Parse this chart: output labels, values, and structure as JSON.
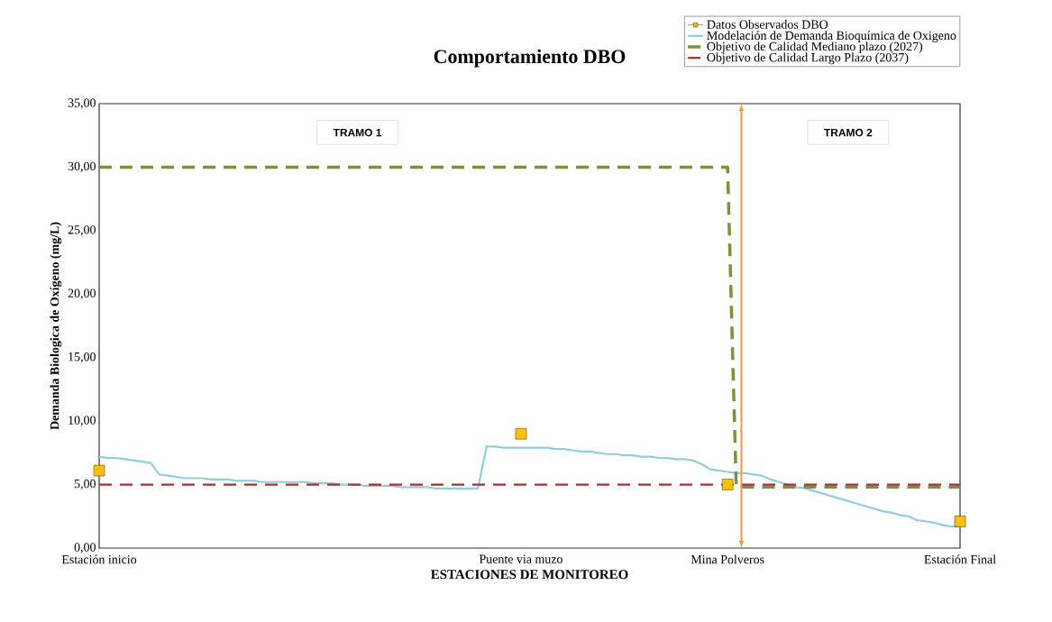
{
  "chart_data": {
    "type": "line",
    "title": "Comportamiento DBO",
    "xlabel": "ESTACIONES DE MONITOREO",
    "ylabel": "Demanda Biologica de Oxígeno  (mg/L)",
    "categories": [
      "Estación inicio",
      null,
      null,
      null,
      null,
      null,
      null,
      null,
      null,
      null,
      null,
      null,
      null,
      null,
      null,
      null,
      null,
      null,
      null,
      null,
      null,
      null,
      null,
      null,
      null,
      null,
      null,
      null,
      null,
      null,
      null,
      null,
      null,
      null,
      null,
      null,
      null,
      null,
      null,
      null,
      null,
      null,
      null,
      null,
      null,
      null,
      null,
      null,
      null,
      "Puente via muzo",
      null,
      null,
      null,
      null,
      null,
      null,
      null,
      null,
      null,
      null,
      null,
      null,
      null,
      null,
      null,
      null,
      null,
      null,
      null,
      null,
      null,
      null,
      null,
      "Mina Polveros",
      null,
      null,
      null,
      null,
      null,
      null,
      null,
      null,
      null,
      null,
      null,
      null,
      null,
      null,
      null,
      null,
      null,
      null,
      null,
      null,
      null,
      null,
      null,
      null,
      null,
      null,
      "Estación Final"
    ],
    "ylim": [
      0,
      35
    ],
    "yticks": [
      {
        "value": 0,
        "label": "0,00"
      },
      {
        "value": 5,
        "label": "5,00"
      },
      {
        "value": 10,
        "label": "10,00"
      },
      {
        "value": 15,
        "label": "15,00"
      },
      {
        "value": 20,
        "label": "20,00"
      },
      {
        "value": 25,
        "label": "25,00"
      },
      {
        "value": 30,
        "label": "30,00"
      },
      {
        "value": 35,
        "label": "35,00"
      }
    ],
    "legend": "top right",
    "series": [
      {
        "name": "Datos Observados DBO",
        "type": "scatter",
        "marker": "square",
        "color": "#ffc000",
        "values": [
          6.1,
          null,
          null,
          null,
          null,
          null,
          null,
          null,
          null,
          null,
          null,
          null,
          null,
          null,
          null,
          null,
          null,
          null,
          null,
          null,
          null,
          null,
          null,
          null,
          null,
          null,
          null,
          null,
          null,
          null,
          null,
          null,
          null,
          null,
          null,
          null,
          null,
          null,
          null,
          null,
          null,
          null,
          null,
          null,
          null,
          null,
          null,
          null,
          null,
          9.0,
          null,
          null,
          null,
          null,
          null,
          null,
          null,
          null,
          null,
          null,
          null,
          null,
          null,
          null,
          null,
          null,
          null,
          null,
          null,
          null,
          null,
          null,
          null,
          5.0,
          null,
          null,
          null,
          null,
          null,
          null,
          null,
          null,
          null,
          null,
          null,
          null,
          null,
          null,
          null,
          null,
          null,
          null,
          null,
          null,
          null,
          null,
          null,
          null,
          null,
          null,
          2.1
        ]
      },
      {
        "name": "Modelación de Demanda Bioquímica de Oxigeno",
        "color": "#92cddc",
        "values": [
          7.2,
          7.1,
          7.1,
          7.0,
          6.9,
          6.8,
          6.7,
          5.8,
          5.7,
          5.6,
          5.5,
          5.5,
          5.5,
          5.4,
          5.4,
          5.4,
          5.3,
          5.3,
          5.3,
          5.2,
          5.2,
          5.2,
          5.2,
          5.2,
          5.2,
          5.1,
          5.1,
          5.1,
          5.0,
          5.0,
          5.0,
          4.9,
          4.9,
          4.9,
          4.9,
          4.8,
          4.8,
          4.8,
          4.8,
          4.7,
          4.7,
          4.7,
          4.7,
          4.7,
          4.7,
          8.0,
          8.0,
          7.9,
          7.9,
          7.9,
          7.9,
          7.9,
          7.9,
          7.8,
          7.8,
          7.7,
          7.6,
          7.6,
          7.5,
          7.4,
          7.4,
          7.3,
          7.3,
          7.2,
          7.2,
          7.1,
          7.1,
          7.0,
          7.0,
          6.9,
          6.6,
          6.2,
          6.1,
          6.0,
          5.9,
          5.9,
          5.8,
          5.7,
          5.4,
          5.2,
          5.0,
          4.8,
          4.7,
          4.5,
          4.3,
          4.1,
          3.9,
          3.7,
          3.5,
          3.3,
          3.1,
          2.9,
          2.8,
          2.6,
          2.5,
          2.2,
          2.1,
          2.0,
          1.8,
          1.7,
          1.7
        ]
      },
      {
        "name": "Objetivo de Calidad Mediano plazo (2027)",
        "type": "line",
        "line_style": "dashed",
        "color": "#77933c",
        "values": [
          30,
          30,
          30,
          30,
          30,
          30,
          30,
          30,
          30,
          30,
          30,
          30,
          30,
          30,
          30,
          30,
          30,
          30,
          30,
          30,
          30,
          30,
          30,
          30,
          30,
          30,
          30,
          30,
          30,
          30,
          30,
          30,
          30,
          30,
          30,
          30,
          30,
          30,
          30,
          30,
          30,
          30,
          30,
          30,
          30,
          30,
          30,
          30,
          30,
          30,
          30,
          30,
          30,
          30,
          30,
          30,
          30,
          30,
          30,
          30,
          30,
          30,
          30,
          30,
          30,
          30,
          30,
          30,
          30,
          30,
          30,
          30,
          30,
          30,
          4.8,
          4.8,
          4.8,
          4.8,
          4.8,
          4.8,
          4.8,
          4.8,
          4.8,
          4.8,
          4.8,
          4.8,
          4.8,
          4.8,
          4.8,
          4.8,
          4.8,
          4.8,
          4.8,
          4.8,
          4.8,
          4.8,
          4.8,
          4.8,
          4.8,
          4.8,
          4.8
        ]
      },
      {
        "name": "Objetivo de Calidad Largo Plazo (2037)",
        "type": "line",
        "line_style": "dashed",
        "color": "#a5302d",
        "values": [
          5,
          5,
          5,
          5,
          5,
          5,
          5,
          5,
          5,
          5,
          5,
          5,
          5,
          5,
          5,
          5,
          5,
          5,
          5,
          5,
          5,
          5,
          5,
          5,
          5,
          5,
          5,
          5,
          5,
          5,
          5,
          5,
          5,
          5,
          5,
          5,
          5,
          5,
          5,
          5,
          5,
          5,
          5,
          5,
          5,
          5,
          5,
          5,
          5,
          5,
          5,
          5,
          5,
          5,
          5,
          5,
          5,
          5,
          5,
          5,
          5,
          5,
          5,
          5,
          5,
          5,
          5,
          5,
          5,
          5,
          5,
          5,
          5,
          5,
          5,
          5,
          5,
          5,
          5,
          5,
          5,
          5,
          5,
          5,
          5,
          5,
          5,
          5,
          5,
          5,
          5,
          5,
          5,
          5,
          5,
          5,
          5,
          5,
          5,
          5,
          5
        ]
      }
    ],
    "annotations": [
      "TRAMO 1",
      "TRAMO 2"
    ]
  }
}
